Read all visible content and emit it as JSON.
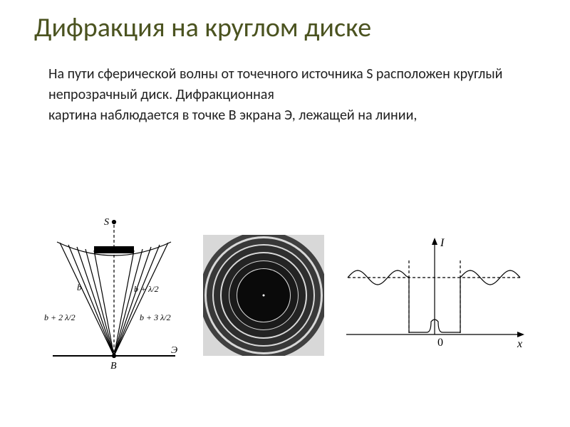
{
  "title": "Дифракция на круглом диске",
  "paragraph": {
    "line1": "На пути сферической волны от точечного источника S расположен круглый непрозрачный диск. Дифракционная",
    "line2": "картина наблюдается в точке В экрана Э, лежащей на линии,"
  },
  "colors": {
    "title": "#4b5320",
    "text": "#222222",
    "stroke": "#000000",
    "bg": "#ffffff",
    "ring_bg": "#e5e5e5",
    "noise_dark": "#2b2b2b",
    "noise_light": "#c8c8c8",
    "center_spot": "#ffffff"
  },
  "zone_diagram": {
    "labels": {
      "source": "S",
      "b": "b",
      "bz1": "b + λ/2",
      "bz2": "b + 2 λ/2",
      "bz3": "b + 3 λ/2",
      "screen": "Э",
      "point": "B"
    },
    "stroke_width": 1.2,
    "font_size": 14
  },
  "ring_pattern": {
    "background": "#d8d8d8",
    "center_dot": "#ffffff",
    "rings": [
      {
        "d": 74,
        "w": 74,
        "color": "#0a0a0a"
      },
      {
        "d": 96,
        "w": 10,
        "color": "#1a1a1a"
      },
      {
        "d": 118,
        "w": 10,
        "color": "#242424"
      },
      {
        "d": 140,
        "w": 9,
        "color": "#2e2e2e"
      },
      {
        "d": 160,
        "w": 8,
        "color": "#383838"
      },
      {
        "d": 180,
        "w": 7,
        "color": "#404040"
      }
    ]
  },
  "intensity_plot": {
    "labels": {
      "y": "I",
      "x": "x",
      "zero": "0"
    },
    "stroke_width": 1.2,
    "font_size": 14,
    "xlim": [
      -110,
      110
    ],
    "ylim": [
      0,
      90
    ],
    "baseline_y": 70,
    "mean_level_y": 32,
    "osc_amplitude": 10,
    "osc_period": 14,
    "shadow_half_width": 36,
    "poisson_spot": {
      "height": 18,
      "half_width": 5
    }
  }
}
